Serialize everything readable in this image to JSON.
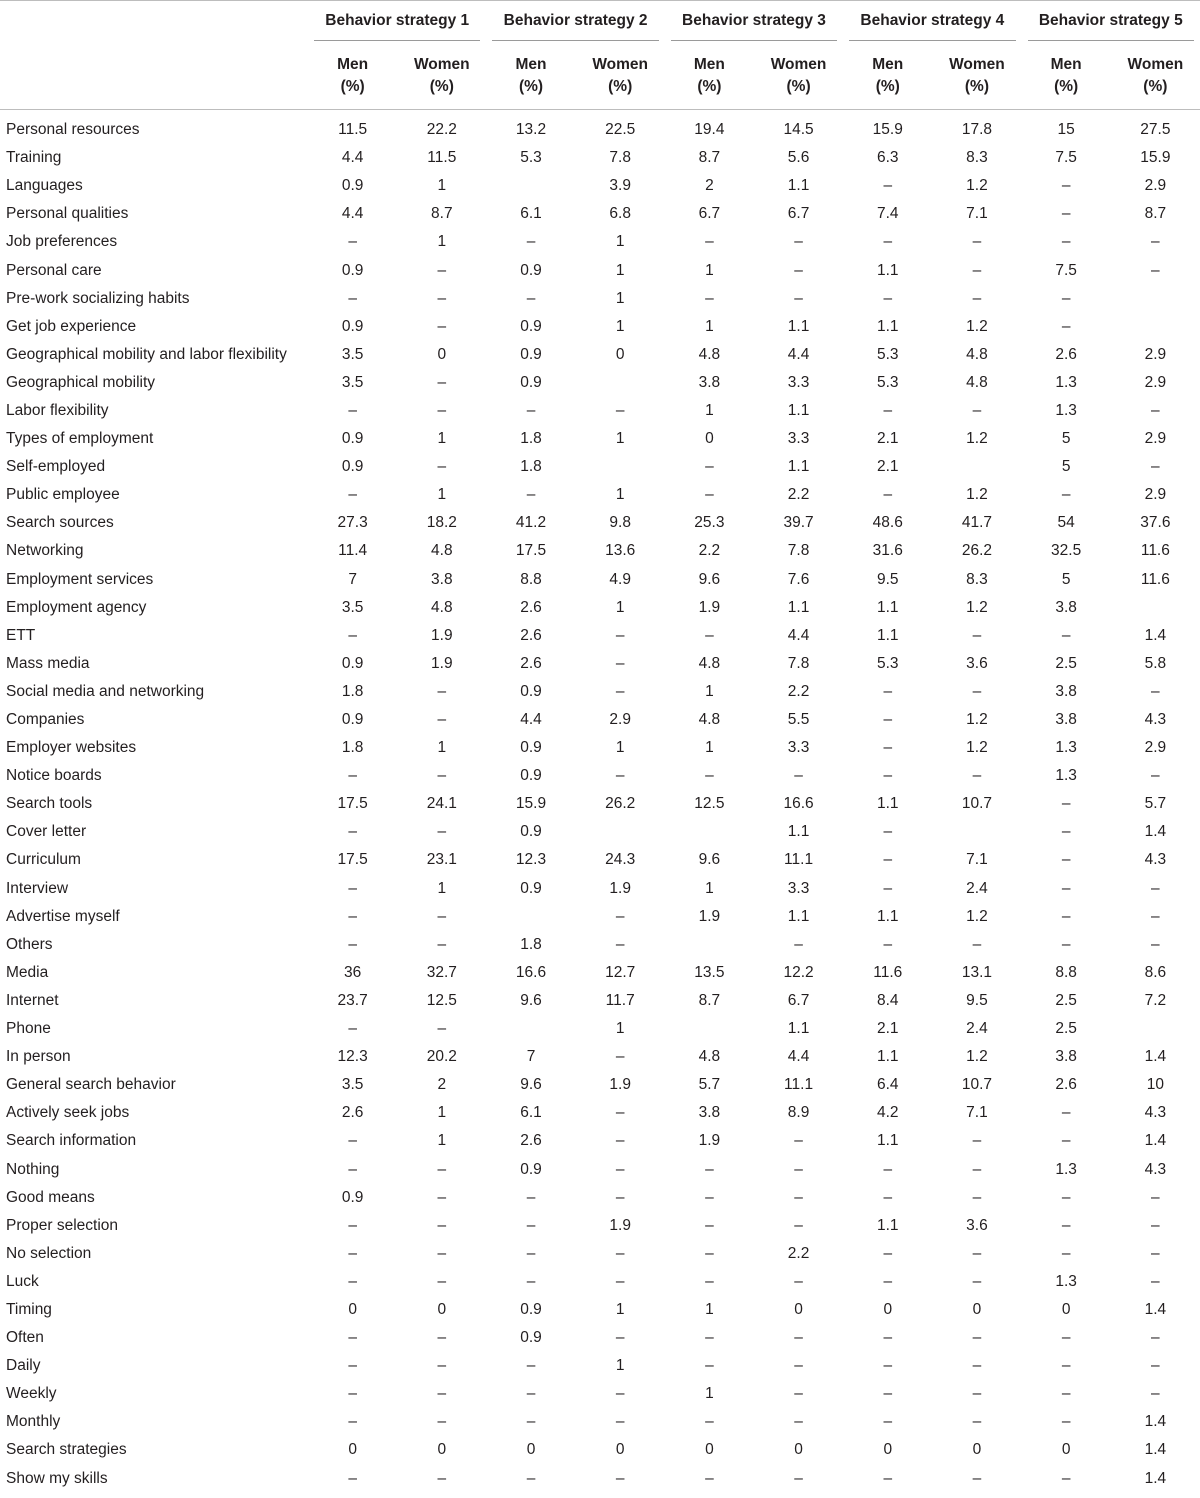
{
  "table": {
    "groups": [
      "Behavior strategy 1",
      "Behavior strategy 2",
      "Behavior strategy 3",
      "Behavior strategy 4",
      "Behavior strategy 5"
    ],
    "subheaders": [
      "Men (%)",
      "Women (%)"
    ],
    "subheader_lines": {
      "men": "Men",
      "women": "Women",
      "unit": "(%)"
    },
    "rows": [
      {
        "label": "Personal resources",
        "values": [
          "11.5",
          "22.2",
          "13.2",
          "22.5",
          "19.4",
          "14.5",
          "15.9",
          "17.8",
          "15",
          "27.5"
        ]
      },
      {
        "label": "Training",
        "values": [
          "4.4",
          "11.5",
          "5.3",
          "7.8",
          "8.7",
          "5.6",
          "6.3",
          "8.3",
          "7.5",
          "15.9"
        ]
      },
      {
        "label": "Languages",
        "values": [
          "0.9",
          "1",
          "",
          "3.9",
          "2",
          "1.1",
          "–",
          "1.2",
          "–",
          "2.9"
        ]
      },
      {
        "label": "Personal qualities",
        "values": [
          "4.4",
          "8.7",
          "6.1",
          "6.8",
          "6.7",
          "6.7",
          "7.4",
          "7.1",
          "–",
          "8.7"
        ]
      },
      {
        "label": "Job preferences",
        "values": [
          "–",
          "1",
          "–",
          "1",
          "–",
          "–",
          "–",
          "–",
          "–",
          "–"
        ]
      },
      {
        "label": "Personal care",
        "values": [
          "0.9",
          "–",
          "0.9",
          "1",
          "1",
          "–",
          "1.1",
          "–",
          "7.5",
          "–"
        ]
      },
      {
        "label": "Pre-work socializing habits",
        "values": [
          "–",
          "–",
          "–",
          "1",
          "–",
          "–",
          "–",
          "–",
          "–",
          ""
        ]
      },
      {
        "label": "Get job experience",
        "values": [
          "0.9",
          "–",
          "0.9",
          "1",
          "1",
          "1.1",
          "1.1",
          "1.2",
          "–",
          ""
        ]
      },
      {
        "label": "Geographical mobility and labor flexibility",
        "values": [
          "3.5",
          "0",
          "0.9",
          "0",
          "4.8",
          "4.4",
          "5.3",
          "4.8",
          "2.6",
          "2.9"
        ]
      },
      {
        "label": "Geographical mobility",
        "values": [
          "3.5",
          "–",
          "0.9",
          "",
          "3.8",
          "3.3",
          "5.3",
          "4.8",
          "1.3",
          "2.9"
        ]
      },
      {
        "label": "Labor flexibility",
        "values": [
          "–",
          "–",
          "–",
          "–",
          "1",
          "1.1",
          "–",
          "–",
          "1.3",
          "–"
        ]
      },
      {
        "label": "Types of employment",
        "values": [
          "0.9",
          "1",
          "1.8",
          "1",
          "0",
          "3.3",
          "2.1",
          "1.2",
          "5",
          "2.9"
        ]
      },
      {
        "label": "Self-employed",
        "values": [
          "0.9",
          "–",
          "1.8",
          "",
          "–",
          "1.1",
          "2.1",
          "",
          "5",
          "–"
        ]
      },
      {
        "label": "Public employee",
        "values": [
          "–",
          "1",
          "–",
          "1",
          "–",
          "2.2",
          "–",
          "1.2",
          "–",
          "2.9"
        ]
      },
      {
        "label": "Search sources",
        "values": [
          "27.3",
          "18.2",
          "41.2",
          "9.8",
          "25.3",
          "39.7",
          "48.6",
          "41.7",
          "54",
          "37.6"
        ]
      },
      {
        "label": "Networking",
        "values": [
          "11.4",
          "4.8",
          "17.5",
          "13.6",
          "2.2",
          "7.8",
          "31.6",
          "26.2",
          "32.5",
          "11.6"
        ]
      },
      {
        "label": "Employment services",
        "values": [
          "7",
          "3.8",
          "8.8",
          "4.9",
          "9.6",
          "7.6",
          "9.5",
          "8.3",
          "5",
          "11.6"
        ]
      },
      {
        "label": "Employment agency",
        "values": [
          "3.5",
          "4.8",
          "2.6",
          "1",
          "1.9",
          "1.1",
          "1.1",
          "1.2",
          "3.8",
          ""
        ]
      },
      {
        "label": "ETT",
        "values": [
          "–",
          "1.9",
          "2.6",
          "–",
          "–",
          "4.4",
          "1.1",
          "–",
          "–",
          "1.4"
        ]
      },
      {
        "label": "Mass media",
        "values": [
          "0.9",
          "1.9",
          "2.6",
          "–",
          "4.8",
          "7.8",
          "5.3",
          "3.6",
          "2.5",
          "5.8"
        ]
      },
      {
        "label": "Social media and networking",
        "values": [
          "1.8",
          "–",
          "0.9",
          "–",
          "1",
          "2.2",
          "–",
          "–",
          "3.8",
          "–"
        ]
      },
      {
        "label": "Companies",
        "values": [
          "0.9",
          "–",
          "4.4",
          "2.9",
          "4.8",
          "5.5",
          "–",
          "1.2",
          "3.8",
          "4.3"
        ]
      },
      {
        "label": "Employer websites",
        "values": [
          "1.8",
          "1",
          "0.9",
          "1",
          "1",
          "3.3",
          "–",
          "1.2",
          "1.3",
          "2.9"
        ]
      },
      {
        "label": "Notice boards",
        "values": [
          "–",
          "–",
          "0.9",
          "–",
          "–",
          "–",
          "–",
          "–",
          "1.3",
          "–"
        ]
      },
      {
        "label": "Search tools",
        "values": [
          "17.5",
          "24.1",
          "15.9",
          "26.2",
          "12.5",
          "16.6",
          "1.1",
          "10.7",
          "–",
          "5.7"
        ]
      },
      {
        "label": "Cover letter",
        "values": [
          "–",
          "–",
          "0.9",
          "",
          "",
          "1.1",
          "–",
          "",
          "–",
          "1.4"
        ]
      },
      {
        "label": "Curriculum",
        "values": [
          "17.5",
          "23.1",
          "12.3",
          "24.3",
          "9.6",
          "11.1",
          "–",
          "7.1",
          "–",
          "4.3"
        ]
      },
      {
        "label": "Interview",
        "values": [
          "–",
          "1",
          "0.9",
          "1.9",
          "1",
          "3.3",
          "–",
          "2.4",
          "–",
          "–"
        ]
      },
      {
        "label": "Advertise myself",
        "values": [
          "–",
          "–",
          "",
          "–",
          "1.9",
          "1.1",
          "1.1",
          "1.2",
          "–",
          "–"
        ]
      },
      {
        "label": "Others",
        "values": [
          "–",
          "–",
          "1.8",
          "–",
          "",
          "–",
          "–",
          "–",
          "–",
          "–"
        ]
      },
      {
        "label": "Media",
        "values": [
          "36",
          "32.7",
          "16.6",
          "12.7",
          "13.5",
          "12.2",
          "11.6",
          "13.1",
          "8.8",
          "8.6"
        ]
      },
      {
        "label": "Internet",
        "values": [
          "23.7",
          "12.5",
          "9.6",
          "11.7",
          "8.7",
          "6.7",
          "8.4",
          "9.5",
          "2.5",
          "7.2"
        ]
      },
      {
        "label": "Phone",
        "values": [
          "–",
          "–",
          "",
          "1",
          "",
          "1.1",
          "2.1",
          "2.4",
          "2.5",
          ""
        ]
      },
      {
        "label": "In person",
        "values": [
          "12.3",
          "20.2",
          "7",
          "–",
          "4.8",
          "4.4",
          "1.1",
          "1.2",
          "3.8",
          "1.4"
        ]
      },
      {
        "label": "General search behavior",
        "values": [
          "3.5",
          "2",
          "9.6",
          "1.9",
          "5.7",
          "11.1",
          "6.4",
          "10.7",
          "2.6",
          "10"
        ]
      },
      {
        "label": "Actively seek jobs",
        "values": [
          "2.6",
          "1",
          "6.1",
          "–",
          "3.8",
          "8.9",
          "4.2",
          "7.1",
          "–",
          "4.3"
        ]
      },
      {
        "label": "Search information",
        "values": [
          "–",
          "1",
          "2.6",
          "–",
          "1.9",
          "–",
          "1.1",
          "–",
          "–",
          "1.4"
        ]
      },
      {
        "label": "Nothing",
        "values": [
          "–",
          "–",
          "0.9",
          "–",
          "–",
          "–",
          "–",
          "–",
          "1.3",
          "4.3"
        ]
      },
      {
        "label": "Good means",
        "values": [
          "0.9",
          "–",
          "–",
          "–",
          "–",
          "–",
          "–",
          "–",
          "–",
          "–"
        ]
      },
      {
        "label": "Proper selection",
        "values": [
          "–",
          "–",
          "–",
          "1.9",
          "–",
          "–",
          "1.1",
          "3.6",
          "–",
          "–"
        ]
      },
      {
        "label": "No selection",
        "values": [
          "–",
          "–",
          "–",
          "–",
          "–",
          "2.2",
          "–",
          "–",
          "–",
          "–"
        ]
      },
      {
        "label": "Luck",
        "values": [
          "–",
          "–",
          "–",
          "–",
          "–",
          "–",
          "–",
          "–",
          "1.3",
          "–"
        ]
      },
      {
        "label": "Timing",
        "values": [
          "0",
          "0",
          "0.9",
          "1",
          "1",
          "0",
          "0",
          "0",
          "0",
          "1.4"
        ]
      },
      {
        "label": "Often",
        "values": [
          "–",
          "–",
          "0.9",
          "–",
          "–",
          "–",
          "–",
          "–",
          "–",
          "–"
        ]
      },
      {
        "label": "Daily",
        "values": [
          "–",
          "–",
          "–",
          "1",
          "–",
          "–",
          "–",
          "–",
          "–",
          "–"
        ]
      },
      {
        "label": "Weekly",
        "values": [
          "–",
          "–",
          "–",
          "–",
          "1",
          "–",
          "–",
          "–",
          "–",
          "–"
        ]
      },
      {
        "label": "Monthly",
        "values": [
          "–",
          "–",
          "–",
          "–",
          "–",
          "–",
          "–",
          "–",
          "–",
          "1.4"
        ]
      },
      {
        "label": "Search strategies",
        "values": [
          "0",
          "0",
          "0",
          "0",
          "0",
          "0",
          "0",
          "0",
          "0",
          "1.4"
        ]
      },
      {
        "label": "Show my skills",
        "values": [
          "–",
          "–",
          "–",
          "–",
          "–",
          "–",
          "–",
          "–",
          "–",
          "1.4"
        ]
      }
    ]
  }
}
